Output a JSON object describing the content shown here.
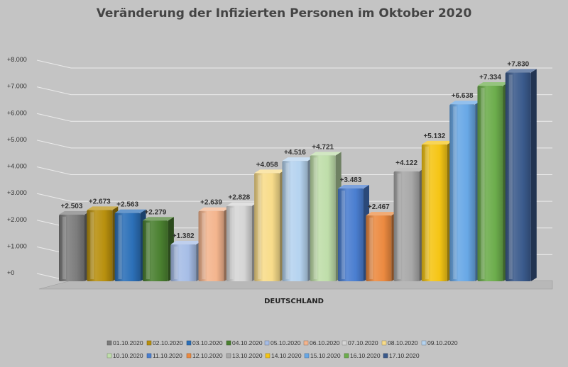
{
  "chart_data": {
    "type": "bar",
    "title": "Veränderung der Infizierten Personen im Oktober 2020",
    "xlabel": "DEUTSCHLAND",
    "ylabel": "",
    "categories": [
      "DEUTSCHLAND"
    ],
    "ylim": [
      0,
      8000
    ],
    "yticks": [
      "+0",
      "+1.000",
      "+2.000",
      "+3.000",
      "+4.000",
      "+5.000",
      "+6.000",
      "+7.000",
      "+8.000"
    ],
    "grid": true,
    "legend_position": "bottom",
    "series": [
      {
        "name": "01.10.2020",
        "value": 2503,
        "label": "+2.503",
        "color": "#7c7c7c"
      },
      {
        "name": "02.10.2020",
        "value": 2673,
        "label": "+2.673",
        "color": "#b8900e"
      },
      {
        "name": "03.10.2020",
        "value": 2563,
        "label": "+2.563",
        "color": "#2c70b8"
      },
      {
        "name": "04.10.2020",
        "value": 2279,
        "label": "+2.279",
        "color": "#4a8030"
      },
      {
        "name": "05.10.2020",
        "value": 1382,
        "label": "+1.382",
        "color": "#a6bde6"
      },
      {
        "name": "06.10.2020",
        "value": 2639,
        "label": "+2.639",
        "color": "#f4b58e"
      },
      {
        "name": "07.10.2020",
        "value": 2828,
        "label": "+2.828",
        "color": "#d6d6d6"
      },
      {
        "name": "08.10.2020",
        "value": 4058,
        "label": "+4.058",
        "color": "#f8dc8a"
      },
      {
        "name": "09.10.2020",
        "value": 4516,
        "label": "+4.516",
        "color": "#b5d3ef"
      },
      {
        "name": "10.10.2020",
        "value": 4721,
        "label": "+4.721",
        "color": "#bfdeaa"
      },
      {
        "name": "11.10.2020",
        "value": 3483,
        "label": "+3.483",
        "color": "#4a7ed0"
      },
      {
        "name": "12.10.2020",
        "value": 2467,
        "label": "+2.467",
        "color": "#ec8a40"
      },
      {
        "name": "13.10.2020",
        "value": 4122,
        "label": "+4.122",
        "color": "#a8a8a8"
      },
      {
        "name": "14.10.2020",
        "value": 5132,
        "label": "+5.132",
        "color": "#f5c515"
      },
      {
        "name": "15.10.2020",
        "value": 6638,
        "label": "+6.638",
        "color": "#68a8e6"
      },
      {
        "name": "16.10.2020",
        "value": 7334,
        "label": "+7.334",
        "color": "#6cad4c"
      },
      {
        "name": "17.10.2020",
        "value": 7830,
        "label": "+7.830",
        "color": "#3a5a8c"
      }
    ]
  }
}
